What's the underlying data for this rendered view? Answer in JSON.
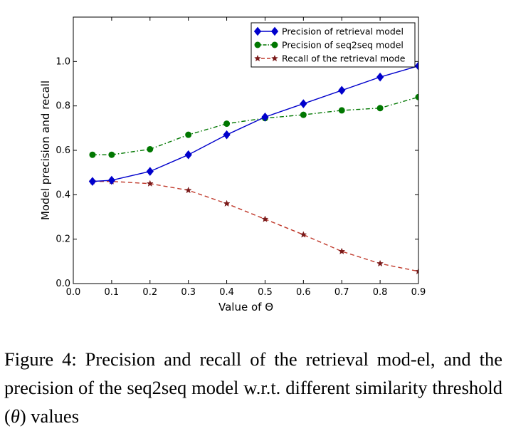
{
  "chart_data": {
    "type": "line",
    "xlabel_prefix": "Value of ",
    "xlabel_symbol": "Θ",
    "ylabel": "Model precision and recall",
    "xlim": [
      0.0,
      0.9
    ],
    "ylim": [
      0.0,
      1.2
    ],
    "x_ticks": [
      "0.0",
      "0.1",
      "0.2",
      "0.3",
      "0.4",
      "0.5",
      "0.6",
      "0.7",
      "0.8",
      "0.9"
    ],
    "y_ticks": [
      "0.0",
      "0.2",
      "0.4",
      "0.6",
      "0.8",
      "1.0"
    ],
    "legend_position": "top-right",
    "grid": false,
    "series": [
      {
        "name": "Precision of retrieval model",
        "color": "#0000cc",
        "line_style": "solid",
        "marker": "diamond",
        "x": [
          0.05,
          0.1,
          0.2,
          0.3,
          0.4,
          0.5,
          0.6,
          0.7,
          0.8,
          0.9
        ],
        "y": [
          0.46,
          0.465,
          0.505,
          0.58,
          0.67,
          0.75,
          0.81,
          0.87,
          0.93,
          0.98
        ]
      },
      {
        "name": "Precision of seq2seq model",
        "color": "#007700",
        "line_style": "dashdot",
        "marker": "circle",
        "x": [
          0.05,
          0.1,
          0.2,
          0.3,
          0.4,
          0.5,
          0.6,
          0.7,
          0.8,
          0.9
        ],
        "y": [
          0.58,
          0.58,
          0.605,
          0.67,
          0.72,
          0.745,
          0.76,
          0.78,
          0.79,
          0.84
        ]
      },
      {
        "name": "Recall of the retrieval mode",
        "color": "#c0392b",
        "marker_color": "#7a1a1a",
        "line_style": "dashed",
        "marker": "star",
        "x": [
          0.05,
          0.1,
          0.2,
          0.3,
          0.4,
          0.5,
          0.6,
          0.7,
          0.8,
          0.9
        ],
        "y": [
          0.46,
          0.46,
          0.45,
          0.42,
          0.36,
          0.29,
          0.22,
          0.145,
          0.09,
          0.055
        ]
      }
    ]
  },
  "caption": {
    "prefix": "Figure 4: Precision and recall of the retrieval mod-el, and the precision of the seq2seq model w.r.t. different similarity threshold (",
    "symbol": "θ",
    "suffix": ") values"
  }
}
